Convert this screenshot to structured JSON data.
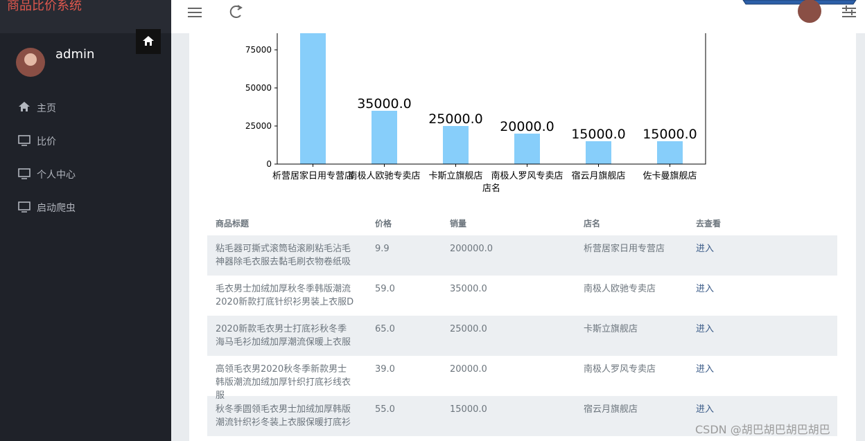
{
  "sidebar": {
    "brand": "商品比价系统",
    "user": "admin",
    "menu": [
      "主页",
      "比价",
      "个人中心",
      "启动爬虫"
    ]
  },
  "chart_data": {
    "type": "bar",
    "categories": [
      "析营居家日用专营店",
      "南极人欧驰专卖店",
      "卡斯立旗舰店",
      "南极人罗风专卖店",
      "宿云月旗舰店",
      "佐卡曼旗舰店"
    ],
    "values": [
      200000,
      35000,
      25000,
      20000,
      15000,
      15000
    ],
    "value_labels": [
      null,
      "35000.0",
      "25000.0",
      "20000.0",
      "15000.0",
      "15000.0"
    ],
    "color": "#87cefa",
    "xlabel": "店名",
    "ylim": [
      0,
      210000
    ],
    "yticks": [
      0,
      25000,
      50000,
      75000
    ]
  },
  "table": {
    "columns": [
      "商品标题",
      "价格",
      "销量",
      "店名",
      "去查看"
    ],
    "rows": [
      [
        "粘毛器可撕式滚筒毡滚刷粘毛沾毛神器除毛衣服去黏毛刷衣物卷纸吸",
        "9.9",
        "200000.0",
        "析营居家日用专营店",
        "进入"
      ],
      [
        "毛衣男士加绒加厚秋冬季韩版潮流2020新款打底针织衫男装上衣服D",
        "59.0",
        "35000.0",
        "南极人欧驰专卖店",
        "进入"
      ],
      [
        "2020新款毛衣男士打底衫秋冬季海马毛衫加绒加厚潮流保暖上衣服",
        "65.0",
        "25000.0",
        "卡斯立旗舰店",
        "进入"
      ],
      [
        "高领毛衣男2020秋冬季新款男士韩版潮流加绒加厚针织打底衫线衣服",
        "39.0",
        "20000.0",
        "南极人罗风专卖店",
        "进入"
      ],
      [
        "秋冬季圆领毛衣男士加绒加厚韩版潮流针织衫冬装上衣服保暖打底衫",
        "55.0",
        "15000.0",
        "宿云月旗舰店",
        "进入"
      ]
    ]
  },
  "watermark": "CSDN @胡巴胡巴胡巴胡巴"
}
